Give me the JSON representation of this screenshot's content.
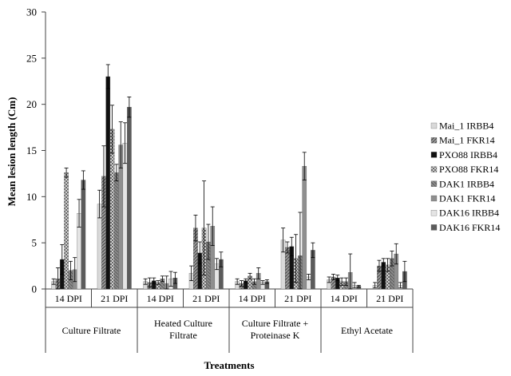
{
  "chart_data": {
    "type": "bar",
    "xlabel": "Treatments",
    "ylabel": "Mean lesion length (Cm)",
    "ylim": [
      0,
      30
    ],
    "yticks": [
      0,
      5,
      10,
      15,
      20,
      25,
      30
    ],
    "grid": false,
    "legend_position": "right",
    "groups": [
      {
        "label": "Culture Filtrate",
        "lines": [
          "Culture Filtrate"
        ],
        "subcategories": [
          "14 DPI",
          "21 DPI"
        ]
      },
      {
        "label": "Heated Culture Filtrate",
        "lines": [
          "Heated Culture",
          "Filtrate"
        ],
        "subcategories": [
          "14 DPI",
          "21 DPI"
        ]
      },
      {
        "label": "Culture Filtrate + Proteinase K",
        "lines": [
          "Culture Filtrate +",
          "Proteinase K"
        ],
        "subcategories": [
          "14 DPI",
          "21 DPI"
        ]
      },
      {
        "label": "Ethyl Acetate",
        "lines": [
          "Ethyl Acetate"
        ],
        "subcategories": [
          "14 DPI",
          "21 DPI"
        ]
      }
    ],
    "series": [
      {
        "name": "Mai_1 IRBB4",
        "pattern": "light",
        "values": [
          0.8,
          9.2,
          0.8,
          1.7,
          0.8,
          5.3,
          1.0,
          0.4
        ],
        "errors": [
          0.3,
          1.5,
          0.3,
          0.8,
          0.3,
          1.3,
          0.3,
          0.3
        ]
      },
      {
        "name": "Mai_1 FKR14",
        "pattern": "hatch",
        "values": [
          1.1,
          12.2,
          0.7,
          6.6,
          0.6,
          4.5,
          1.3,
          2.5
        ],
        "errors": [
          1.2,
          3.3,
          0.5,
          1.4,
          0.3,
          0.6,
          0.3,
          0.6
        ]
      },
      {
        "name": "PXO88 IRBB4",
        "pattern": "black",
        "values": [
          3.2,
          23.0,
          0.9,
          3.9,
          0.9,
          4.6,
          1.2,
          2.9
        ],
        "errors": [
          1.6,
          1.3,
          0.3,
          1.2,
          0.2,
          1.0,
          0.3,
          0.4
        ]
      },
      {
        "name": "PXO88 FKR14",
        "pattern": "checker",
        "values": [
          12.6,
          17.3,
          0.7,
          6.6,
          1.4,
          3.3,
          0.8,
          2.6
        ],
        "errors": [
          0.5,
          2.6,
          0.2,
          5.1,
          0.3,
          2.6,
          0.4,
          0.7
        ]
      },
      {
        "name": "DAK1 IRBB4",
        "pattern": "medium",
        "values": [
          2.0,
          12.6,
          1.1,
          5.1,
          0.8,
          3.6,
          0.8,
          3.3
        ],
        "errors": [
          1.0,
          0.9,
          0.3,
          1.9,
          0.3,
          4.7,
          0.4,
          0.8
        ]
      },
      {
        "name": "DAK1 FKR14",
        "pattern": "grey",
        "values": [
          2.1,
          15.6,
          0.6,
          6.8,
          1.7,
          13.3,
          1.8,
          3.8
        ],
        "errors": [
          1.3,
          2.5,
          0.8,
          2.1,
          0.6,
          1.5,
          2.0,
          1.1
        ]
      },
      {
        "name": "DAK16 IRBB4",
        "pattern": "pale",
        "values": [
          8.2,
          15.8,
          1.1,
          2.7,
          0.7,
          1.3,
          0.4,
          0.4
        ],
        "errors": [
          1.5,
          2.2,
          0.8,
          0.6,
          0.2,
          0.3,
          0.3,
          0.3
        ]
      },
      {
        "name": "DAK16 FKR14",
        "pattern": "dark",
        "values": [
          11.8,
          19.7,
          1.2,
          3.2,
          0.8,
          4.2,
          0.3,
          1.9
        ],
        "errors": [
          1.0,
          1.1,
          0.6,
          0.8,
          0.2,
          0.8,
          0.1,
          1.1
        ]
      }
    ]
  }
}
